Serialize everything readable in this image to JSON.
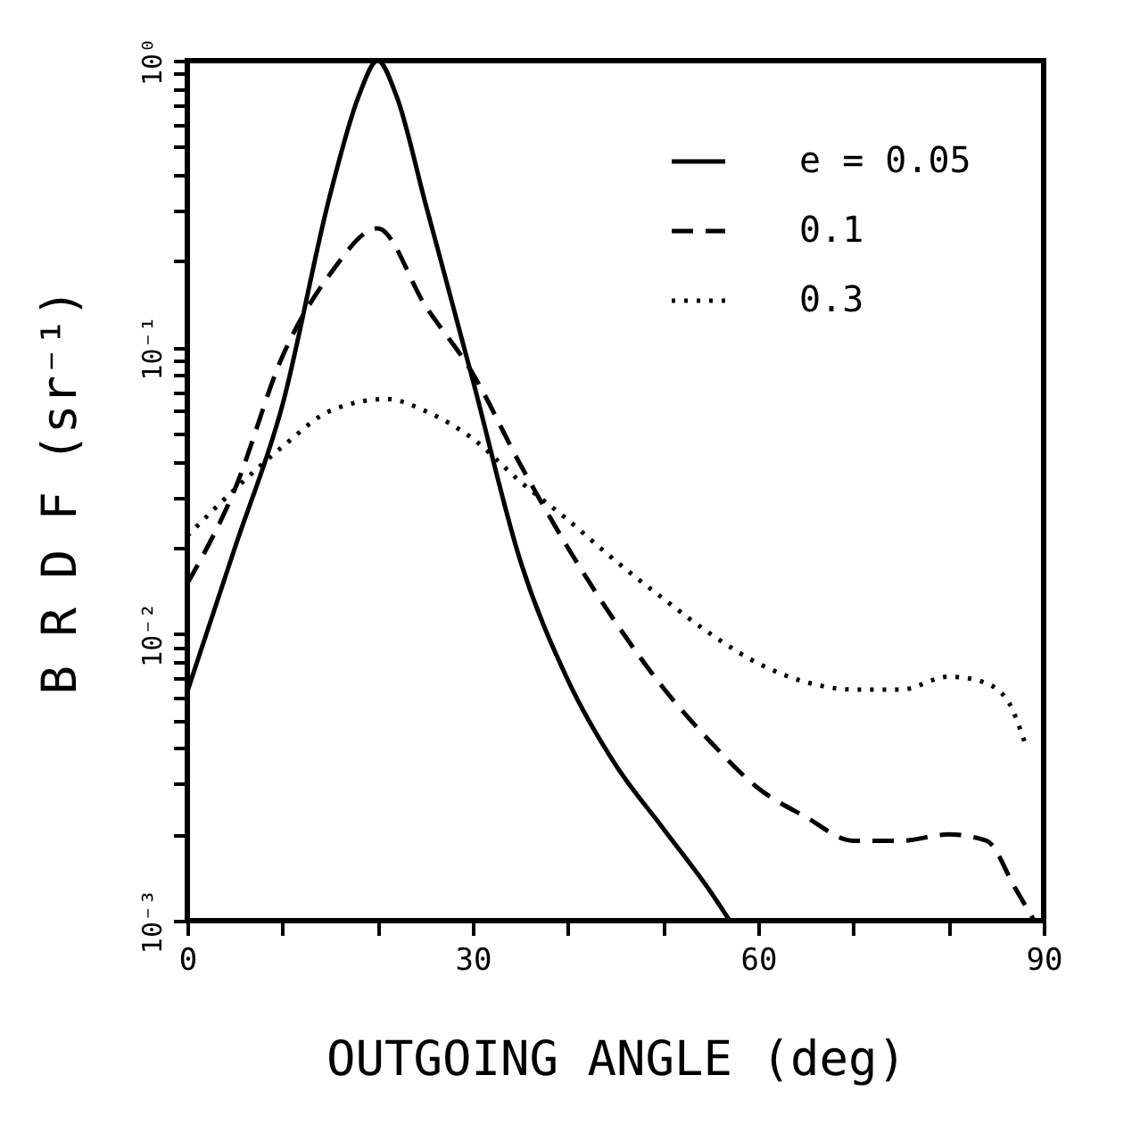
{
  "chart_data": {
    "type": "line",
    "xlabel": "OUTGOING ANGLE   (deg)",
    "ylabel": "B R D F   (sr⁻¹)",
    "log": "y",
    "legend": "top right",
    "grid": false,
    "xlim": [
      0,
      90
    ],
    "ylim": [
      0.001,
      1
    ],
    "xticks": [
      0,
      {
        "value": 10,
        "label": null
      },
      {
        "value": 20,
        "label": null
      },
      30,
      {
        "value": 40,
        "label": null
      },
      {
        "value": 50,
        "label": null
      },
      60,
      {
        "value": 70,
        "label": null
      },
      {
        "value": 80,
        "label": null
      },
      90
    ],
    "yticks": [
      {
        "value": 0.001,
        "label": "10⁻³"
      },
      {
        "value": 0.002,
        "label": null
      },
      {
        "value": 0.003,
        "label": null
      },
      {
        "value": 0.004,
        "label": null
      },
      {
        "value": 0.005,
        "label": null
      },
      {
        "value": 0.006,
        "label": null
      },
      {
        "value": 0.007,
        "label": null
      },
      {
        "value": 0.008,
        "label": null
      },
      {
        "value": 0.009,
        "label": null
      },
      {
        "value": 0.01,
        "label": "10⁻²"
      },
      {
        "value": 0.02,
        "label": null
      },
      {
        "value": 0.03,
        "label": null
      },
      {
        "value": 0.04,
        "label": null
      },
      {
        "value": 0.05,
        "label": null
      },
      {
        "value": 0.06,
        "label": null
      },
      {
        "value": 0.07,
        "label": null
      },
      {
        "value": 0.08,
        "label": null
      },
      {
        "value": 0.09,
        "label": null
      },
      {
        "value": 0.1,
        "label": "10⁻¹"
      },
      {
        "value": 0.2,
        "label": null
      },
      {
        "value": 0.3,
        "label": null
      },
      {
        "value": 0.4,
        "label": null
      },
      {
        "value": 0.5,
        "label": null
      },
      {
        "value": 0.6,
        "label": null
      },
      {
        "value": 0.7,
        "label": null
      },
      {
        "value": 0.8,
        "label": null
      },
      {
        "value": 0.9,
        "label": null
      },
      {
        "value": 1,
        "label": "10⁰"
      }
    ],
    "series": [
      {
        "name": "e = 0.05",
        "color": "#000000",
        "line_style": "solid",
        "x": [
          0,
          5,
          10,
          15,
          18,
          20,
          22,
          25,
          30,
          35,
          40,
          45,
          50,
          55,
          57
        ],
        "values": [
          0.0063,
          0.02,
          0.063,
          0.34,
          0.75,
          1.0,
          0.75,
          0.32,
          0.077,
          0.018,
          0.0069,
          0.0035,
          0.0021,
          0.00126,
          0.001
        ]
      },
      {
        "name": "0.1",
        "color": "#000000",
        "line_style": "dashed",
        "x": [
          0,
          5,
          10,
          15,
          20,
          25,
          30,
          35,
          40,
          45,
          50,
          55,
          60,
          65,
          70,
          75,
          80,
          84,
          87,
          89
        ],
        "values": [
          0.015,
          0.032,
          0.093,
          0.18,
          0.26,
          0.14,
          0.081,
          0.039,
          0.02,
          0.011,
          0.0065,
          0.0042,
          0.0029,
          0.0023,
          0.0019,
          0.0019,
          0.002,
          0.0019,
          0.0013,
          0.001
        ]
      },
      {
        "name": "0.3",
        "color": "#000000",
        "line_style": "dotted",
        "x": [
          0,
          5,
          10,
          15,
          21,
          25,
          30,
          35,
          40,
          45,
          50,
          55,
          60,
          65,
          70,
          75,
          80,
          83,
          86,
          88
        ],
        "values": [
          0.022,
          0.032,
          0.045,
          0.06,
          0.066,
          0.06,
          0.048,
          0.034,
          0.025,
          0.018,
          0.0133,
          0.01,
          0.0079,
          0.0068,
          0.0064,
          0.0064,
          0.0071,
          0.0069,
          0.006,
          0.0042
        ]
      }
    ]
  }
}
